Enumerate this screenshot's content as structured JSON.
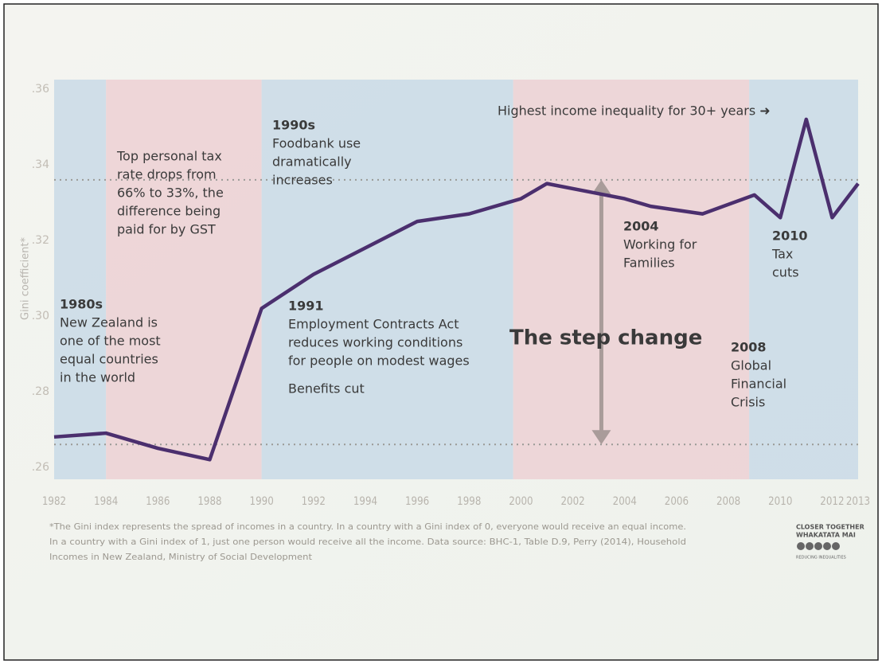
{
  "chart_data": {
    "type": "line",
    "y_label": "Gini coefficient*",
    "x": [
      1982,
      1984,
      1986,
      1988,
      1990,
      1992,
      1994,
      1996,
      1998,
      2000,
      2001,
      2004,
      2005,
      2007,
      2009,
      2010,
      2011,
      2012,
      2013
    ],
    "series": [
      {
        "name": "Gini coefficient",
        "color": "#4b2f6e",
        "values": [
          0.268,
          0.269,
          0.265,
          0.262,
          0.302,
          0.311,
          0.318,
          0.325,
          0.327,
          0.331,
          0.335,
          0.331,
          0.329,
          0.327,
          0.332,
          0.326,
          0.352,
          0.326,
          0.335
        ]
      }
    ],
    "xlim": [
      1982,
      2013
    ],
    "xticks": [
      1982,
      1984,
      1986,
      1988,
      1990,
      1992,
      1994,
      1996,
      1998,
      2000,
      2002,
      2004,
      2006,
      2008,
      2010,
      2012,
      2013
    ],
    "ylim": [
      0.2568,
      0.3625
    ],
    "yticks": [
      {
        "value": 0.26,
        "label": ".26"
      },
      {
        "value": 0.28,
        "label": ".28"
      },
      {
        "value": 0.3,
        "label": ".30"
      },
      {
        "value": 0.32,
        "label": ".32"
      },
      {
        "value": 0.34,
        "label": ".34"
      },
      {
        "value": 0.36,
        "label": ".36"
      }
    ],
    "bands": [
      {
        "from": 1982,
        "to": 1984,
        "color": "#c9d9e6"
      },
      {
        "from": 1984,
        "to": 1990,
        "color": "#ecd0d3"
      },
      {
        "from": 1990,
        "to": 1999.7,
        "color": "#c9d9e6"
      },
      {
        "from": 1999.7,
        "to": 2008.8,
        "color": "#ecd0d3"
      },
      {
        "from": 2008.8,
        "to": 2013,
        "color": "#c9d9e6"
      }
    ],
    "reference_lines": [
      0.266,
      0.336
    ],
    "annotations": [
      {
        "heading": "1980s",
        "lines": [
          "New Zealand is",
          "one of the most",
          "equal countries",
          "in the world"
        ]
      },
      {
        "lines": [
          "Top personal tax",
          "rate drops from",
          "66% to 33%, the",
          "difference being",
          "paid for by GST"
        ]
      },
      {
        "heading": "1990s",
        "lines": [
          "Foodbank use",
          "dramatically",
          "increases"
        ]
      },
      {
        "heading": "1991",
        "lines": [
          "Employment Contracts Act",
          "reduces working conditions",
          "for people on modest wages",
          "Benefits cut"
        ]
      },
      {
        "lines": [
          "Highest income inequality for 30+ years ➜"
        ]
      },
      {
        "lines": [
          "The step change"
        ]
      },
      {
        "heading": "2004",
        "lines": [
          "Working for",
          "Families"
        ]
      },
      {
        "heading": "2008",
        "lines": [
          "Global",
          "Financial",
          "Crisis"
        ]
      },
      {
        "heading": "2010",
        "lines": [
          "Tax",
          "cuts"
        ]
      }
    ],
    "footnote": [
      "*The Gini index represents the spread of incomes in a country. In a country with a Gini index of 0, everyone would receive an equal income.",
      "In a country with a Gini index of 1, just one person would receive all the income. Data source: BHC-1, Table D.9, Perry (2014), Household",
      "Incomes in New Zealand, Ministry of Social Development"
    ],
    "logo": [
      "CLOSER TOGETHER",
      "WHAKATATA MAI",
      "REDUCING INEQUALITIES"
    ]
  }
}
